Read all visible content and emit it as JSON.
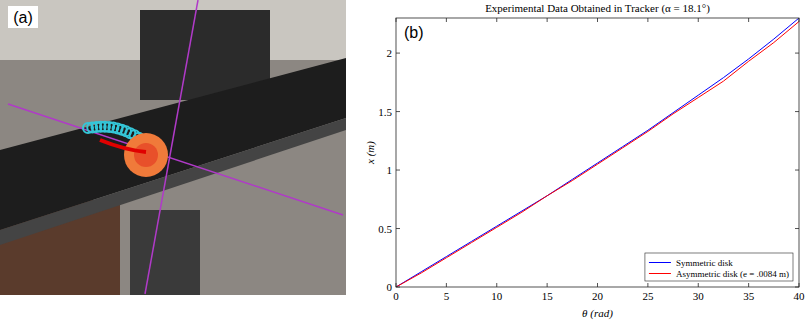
{
  "panel_labels": [
    "(a)",
    "(b)"
  ],
  "chart_data": {
    "type": "line",
    "title": "Experimental Data Obtained in Tracker (α = 18.1°)",
    "x_label": "θ (rad)",
    "y_label": "x (m)",
    "x": [
      0,
      2.5,
      5,
      7.5,
      10,
      12.5,
      15,
      17.5,
      20,
      22.5,
      25,
      27.5,
      30,
      32.5,
      35,
      37.5,
      40
    ],
    "series": [
      {
        "name": "Symmetric disk",
        "color": "#0000ff",
        "values": [
          0,
          0.13,
          0.26,
          0.39,
          0.52,
          0.65,
          0.78,
          0.92,
          1.06,
          1.2,
          1.34,
          1.49,
          1.64,
          1.79,
          1.95,
          2.12,
          2.3
        ]
      },
      {
        "name": "Asymmetric disk (e = .0084 m)",
        "color": "#ff0000",
        "values": [
          0,
          0.12,
          0.25,
          0.38,
          0.51,
          0.64,
          0.78,
          0.91,
          1.05,
          1.19,
          1.33,
          1.48,
          1.62,
          1.76,
          1.93,
          2.09,
          2.27
        ]
      }
    ],
    "xlim": [
      0,
      40
    ],
    "xticks": [
      0,
      5,
      10,
      15,
      20,
      25,
      30,
      35,
      40
    ],
    "ylim": [
      0,
      2.3
    ],
    "yticks": [
      0,
      0.5,
      1,
      1.5,
      2
    ],
    "grid": false,
    "legend": "lower right"
  }
}
